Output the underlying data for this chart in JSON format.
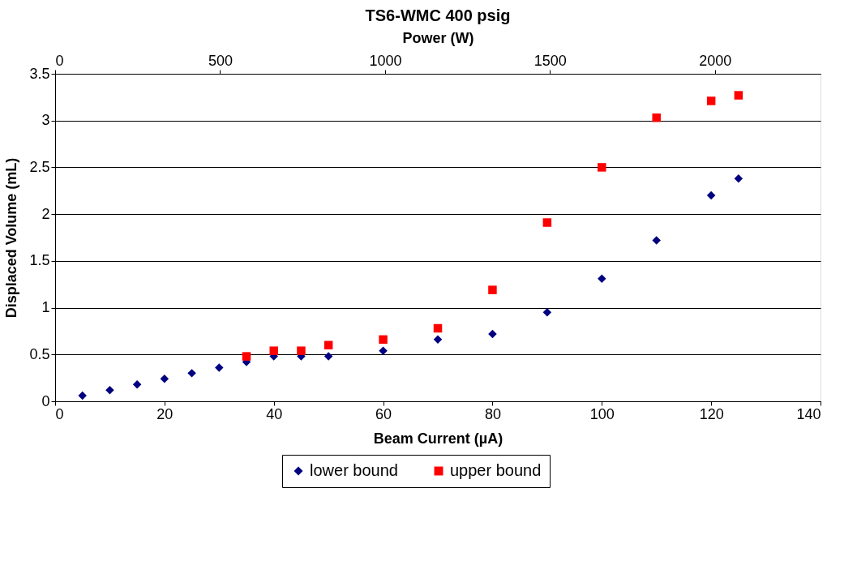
{
  "chart_data": {
    "type": "scatter",
    "title": "TS6-WMC 400 psig",
    "xlabel": "Beam Current (µA)",
    "ylabel": "Displaced Volume (mL)",
    "x2label": "Power (W)",
    "xlim": [
      0,
      140
    ],
    "xticks": [
      0,
      20,
      40,
      60,
      80,
      100,
      120,
      140
    ],
    "ylim": [
      0,
      3.5
    ],
    "yticks": [
      0,
      0.5,
      1,
      1.5,
      2,
      2.5,
      3,
      3.5
    ],
    "x2lim": [
      0,
      2320
    ],
    "x2ticks": [
      0,
      500,
      1000,
      1500,
      2000
    ],
    "grid": "y",
    "legend": "bottom",
    "series": [
      {
        "name": "lower bound",
        "color": "#000080",
        "marker": "diamond",
        "x": [
          5,
          10,
          15,
          20,
          25,
          30,
          35,
          40,
          45,
          50,
          60,
          70,
          80,
          90,
          100,
          110,
          120,
          125
        ],
        "values": [
          0.06,
          0.12,
          0.18,
          0.24,
          0.3,
          0.36,
          0.42,
          0.48,
          0.48,
          0.48,
          0.54,
          0.66,
          0.72,
          0.95,
          1.31,
          1.72,
          2.2,
          2.38
        ]
      },
      {
        "name": "upper bound",
        "color": "#ff0000",
        "marker": "square",
        "x": [
          35,
          40,
          45,
          50,
          60,
          70,
          80,
          90,
          100,
          110,
          120,
          125
        ],
        "values": [
          0.48,
          0.54,
          0.54,
          0.6,
          0.66,
          0.78,
          1.19,
          1.91,
          2.5,
          3.03,
          3.21,
          3.27
        ]
      }
    ]
  }
}
